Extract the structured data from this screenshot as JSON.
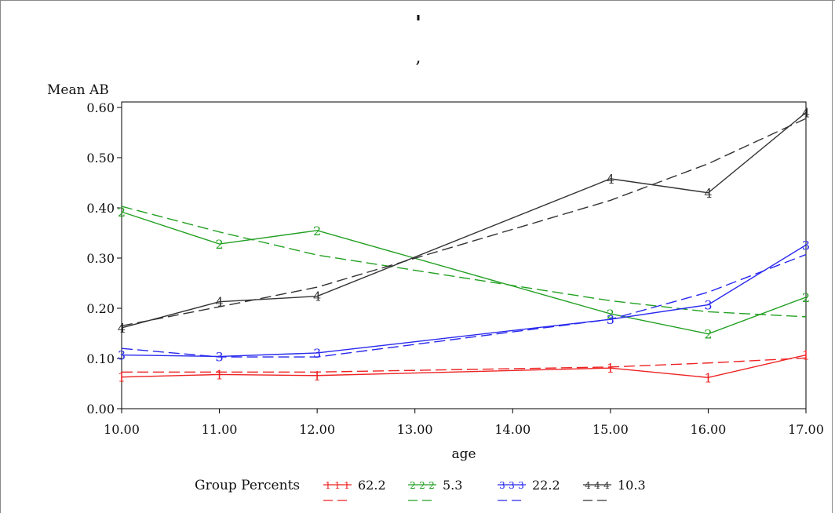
{
  "chart_data": {
    "type": "line",
    "title_marks": [
      "'",
      ","
    ],
    "ylabel": "Mean AB",
    "xlabel": "age",
    "xlim": [
      10,
      17
    ],
    "ylim": [
      0,
      0.6
    ],
    "x_ticks": [
      10,
      11,
      12,
      13,
      14,
      15,
      16,
      17
    ],
    "x_tick_labels": [
      "10.00",
      "11.00",
      "12.00",
      "13.00",
      "14.00",
      "15.00",
      "16.00",
      "17.00"
    ],
    "y_ticks": [
      0,
      0.1,
      0.2,
      0.3,
      0.4,
      0.5,
      0.6
    ],
    "y_tick_labels": [
      "0.00",
      "0.10",
      "0.20",
      "0.30",
      "0.40",
      "0.50",
      "0.60"
    ],
    "x": [
      10,
      11,
      12,
      15,
      16,
      17
    ],
    "legend": {
      "title": "Group Percents",
      "placement": "bottom"
    },
    "series": [
      {
        "name": "62.2",
        "marker": "1",
        "color": "#ee2222",
        "observed": [
          0.063,
          0.068,
          0.066,
          0.081,
          0.062,
          0.107
        ],
        "fitted": [
          0.073,
          0.073,
          0.073,
          0.083,
          0.091,
          0.101
        ]
      },
      {
        "name": "5.3",
        "marker": "2",
        "color": "#22a022",
        "observed": [
          0.392,
          0.328,
          0.355,
          0.189,
          0.149,
          0.222
        ],
        "fitted": [
          0.403,
          0.352,
          0.306,
          0.215,
          0.193,
          0.183
        ]
      },
      {
        "name": "22.2",
        "marker": "3",
        "color": "#2828ee",
        "observed": [
          0.107,
          0.104,
          0.111,
          0.178,
          0.207,
          0.326
        ],
        "fitted": [
          0.12,
          0.103,
          0.103,
          0.178,
          0.232,
          0.307
        ]
      },
      {
        "name": "10.3",
        "marker": "4",
        "color": "#333333",
        "observed": [
          0.161,
          0.213,
          0.224,
          0.458,
          0.43,
          0.59
        ],
        "fitted": [
          0.165,
          0.203,
          0.242,
          0.415,
          0.488,
          0.578
        ]
      }
    ]
  }
}
